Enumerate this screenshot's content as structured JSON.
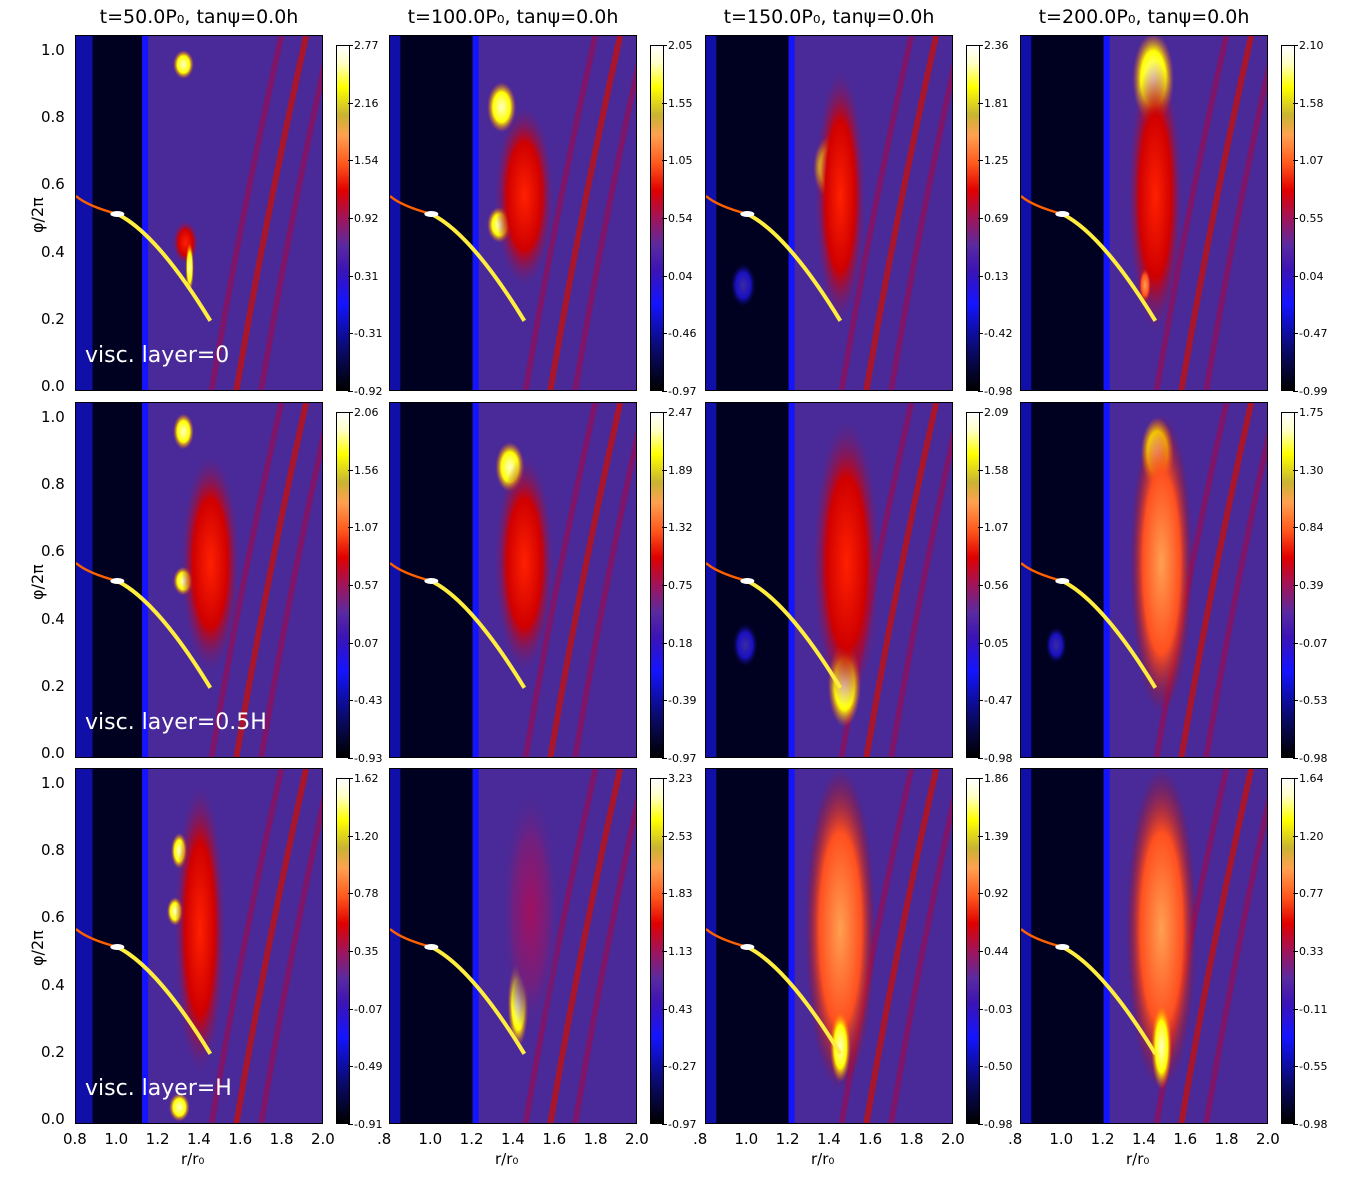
{
  "figure": {
    "column_titles": [
      "t=50.0P₀, tanψ=0.0h",
      "t=100.0P₀, tanψ=0.0h",
      "t=150.0P₀, tanψ=0.0h",
      "t=200.0P₀, tanψ=0.0h"
    ],
    "row_labels": [
      "visc. layer=0",
      "visc. layer=0.5H",
      "visc. layer=H"
    ],
    "ylabel": "φ/2π",
    "xlabel": "r/r₀",
    "colors": {
      "low": "#000000",
      "mid_blue": "#1414ff",
      "mid_red": "#e00000",
      "high": "#ffff00",
      "max": "#ffffff"
    }
  },
  "chart_data": {
    "type": "heatmap",
    "xlabel": "r/r₀",
    "ylabel": "φ/2π",
    "xlim": [
      0.8,
      2.0
    ],
    "ylim": [
      0.0,
      1.0
    ],
    "x_ticks_first_column": [
      "0.8",
      "1.0",
      "1.2",
      "1.4",
      "1.6",
      "1.8",
      "2.0"
    ],
    "x_ticks_other_columns": [
      ".8",
      "1.0",
      "1.2",
      "1.4",
      "1.6",
      "1.8",
      "2.0"
    ],
    "y_ticks": [
      "0.0",
      "0.2",
      "0.4",
      "0.6",
      "0.8",
      "1.0"
    ],
    "colorbar_ticks": [
      [
        [
          "2.77",
          "2.16",
          "1.54",
          "0.92",
          "0.31",
          "-0.31",
          "-0.92"
        ],
        [
          "2.05",
          "1.55",
          "1.05",
          "0.54",
          "0.04",
          "-0.46",
          "-0.97"
        ],
        [
          "2.36",
          "1.81",
          "1.25",
          "0.69",
          "0.13",
          "-0.42",
          "-0.98"
        ],
        [
          "2.10",
          "1.58",
          "1.07",
          "0.55",
          "0.04",
          "-0.47",
          "-0.99"
        ]
      ],
      [
        [
          "2.06",
          "1.56",
          "1.07",
          "0.57",
          "0.07",
          "-0.43",
          "-0.93"
        ],
        [
          "2.47",
          "1.89",
          "1.32",
          "0.75",
          "0.18",
          "-0.39",
          "-0.97"
        ],
        [
          "2.09",
          "1.58",
          "1.07",
          "0.56",
          "0.05",
          "-0.47",
          "-0.98"
        ],
        [
          "1.75",
          "1.30",
          "0.84",
          "0.39",
          "-0.07",
          "-0.53",
          "-0.98"
        ]
      ],
      [
        [
          "1.62",
          "1.20",
          "0.78",
          "0.35",
          "-0.07",
          "-0.49",
          "-0.91"
        ],
        [
          "3.23",
          "2.53",
          "1.83",
          "1.13",
          "0.43",
          "-0.27",
          "-0.97"
        ],
        [
          "1.86",
          "1.39",
          "0.92",
          "0.44",
          "-0.03",
          "-0.50",
          "-0.98"
        ],
        [
          "1.64",
          "1.20",
          "0.77",
          "0.33",
          "-0.11",
          "-0.55",
          "-0.98"
        ]
      ]
    ],
    "planet": {
      "r": 1.0,
      "phi": 0.5
    }
  }
}
